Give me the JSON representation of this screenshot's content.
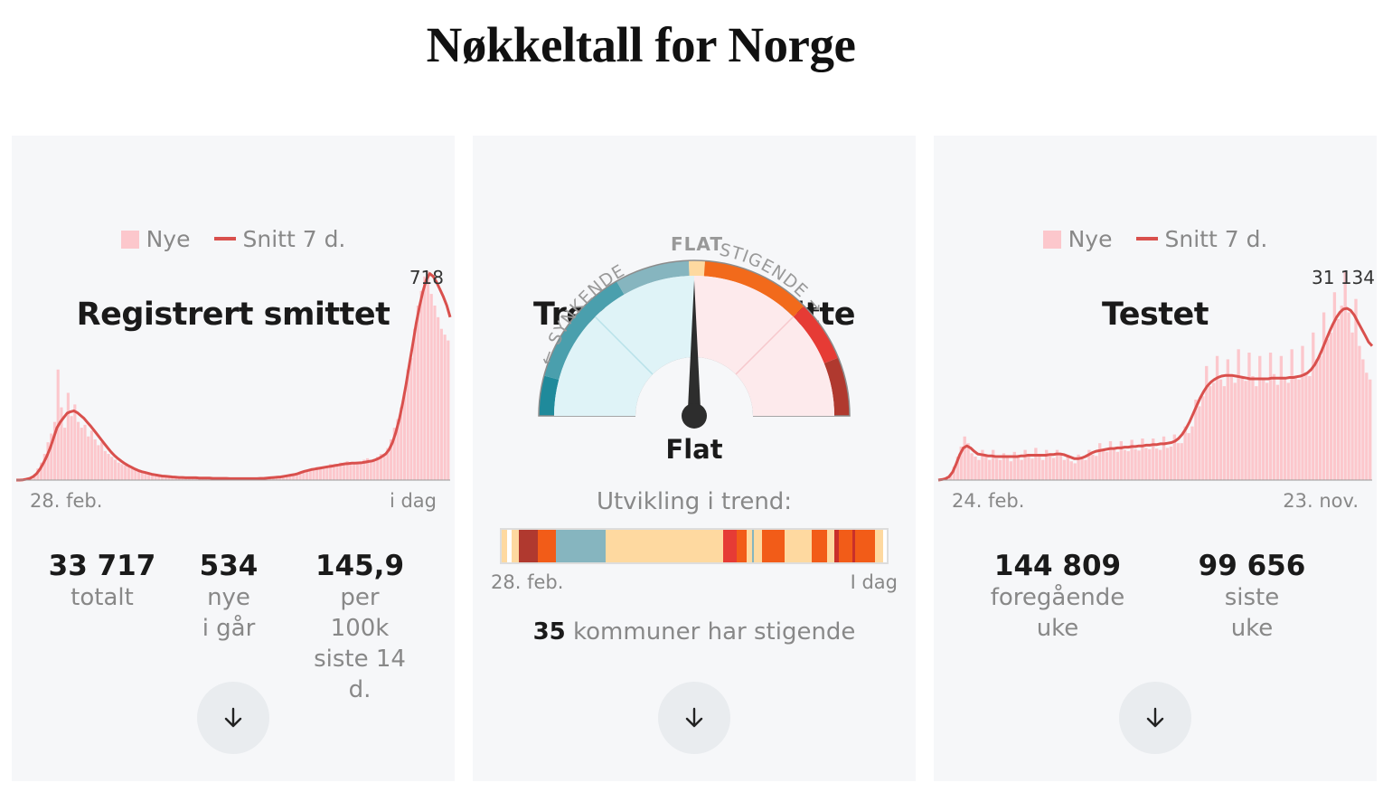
{
  "page_title": "Nøkkeltall for Norge",
  "colors": {
    "bar": "#fcc7cc",
    "line": "#d9504d",
    "card_bg": "#f6f7f9"
  },
  "cards": {
    "smittet": {
      "title": "Registrert smittet",
      "legend_bars": "Nye",
      "legend_line": "Snitt 7 d.",
      "x_start": "28. feb.",
      "x_end": "i dag",
      "peak_label": "718",
      "stats": [
        {
          "value": "33 717",
          "label": "totalt"
        },
        {
          "value": "534",
          "label": "nye\ni går"
        },
        {
          "value": "145,9",
          "label": "per 100k\nsiste 14 d."
        }
      ]
    },
    "trend": {
      "title": "Trend i reg. smitte",
      "gauge_left": "← SYNKENDE",
      "gauge_top": "FLAT",
      "gauge_right": "STIGENDE →",
      "gauge_value": "Flat",
      "subtitle": "Utvikling i trend:",
      "x_start": "28. feb.",
      "x_end": "I dag",
      "kommuner_count": "35",
      "kommuner_text": " kommuner har stigende"
    },
    "testet": {
      "title": "Testet",
      "legend_bars": "Nye",
      "legend_line": "Snitt 7 d.",
      "x_start": "24. feb.",
      "x_end": "23. nov.",
      "peak_label": "31 134",
      "stats": [
        {
          "value": "144 809",
          "label": "foregående\nuke"
        },
        {
          "value": "99 656",
          "label": "siste\nuke"
        }
      ]
    }
  },
  "chart_data": [
    {
      "type": "bar",
      "name": "Registrert smittet",
      "x_start": "28. feb.",
      "x_end": "i dag",
      "peak_value": 718,
      "ylim": [
        0,
        718
      ],
      "series": [
        {
          "name": "Nye",
          "kind": "bar",
          "values": [
            0,
            0,
            2,
            5,
            10,
            20,
            40,
            60,
            90,
            130,
            160,
            200,
            380,
            250,
            180,
            300,
            220,
            260,
            200,
            180,
            190,
            150,
            170,
            140,
            120,
            130,
            100,
            90,
            80,
            70,
            60,
            55,
            50,
            45,
            40,
            35,
            30,
            28,
            25,
            22,
            20,
            18,
            15,
            14,
            12,
            11,
            10,
            10,
            9,
            8,
            8,
            8,
            7,
            7,
            8,
            6,
            6,
            7,
            6,
            6,
            5,
            5,
            6,
            5,
            5,
            5,
            4,
            5,
            5,
            6,
            5,
            5,
            6,
            7,
            8,
            9,
            10,
            10,
            12,
            14,
            15,
            16,
            18,
            20,
            25,
            30,
            28,
            35,
            40,
            45,
            38,
            42,
            50,
            55,
            48,
            52,
            60,
            58,
            65,
            55,
            60,
            62,
            58,
            70,
            75,
            68,
            72,
            80,
            90,
            85,
            110,
            140,
            180,
            210,
            250,
            300,
            380,
            420,
            520,
            600,
            650,
            700,
            718,
            640,
            600,
            560,
            520,
            500,
            480
          ]
        },
        {
          "name": "Snitt 7 d.",
          "kind": "line",
          "values": [
            0,
            0,
            1,
            3,
            6,
            12,
            22,
            38,
            58,
            82,
            110,
            145,
            180,
            200,
            215,
            230,
            235,
            238,
            232,
            222,
            212,
            198,
            185,
            170,
            155,
            140,
            125,
            110,
            96,
            84,
            74,
            65,
            57,
            50,
            44,
            38,
            33,
            29,
            26,
            23,
            20,
            18,
            16,
            14,
            13,
            12,
            11,
            10,
            9,
            9,
            8,
            8,
            8,
            8,
            7,
            7,
            7,
            7,
            6,
            6,
            6,
            6,
            6,
            5,
            5,
            5,
            5,
            5,
            5,
            5,
            5,
            5,
            6,
            6,
            7,
            8,
            9,
            10,
            11,
            13,
            15,
            17,
            19,
            22,
            26,
            30,
            33,
            36,
            38,
            40,
            42,
            44,
            46,
            48,
            50,
            52,
            54,
            56,
            57,
            58,
            58,
            59,
            60,
            62,
            64,
            66,
            70,
            75,
            82,
            90,
            105,
            130,
            165,
            210,
            265,
            330,
            400,
            470,
            540,
            600,
            650,
            690,
            710,
            700,
            680,
            655,
            630,
            600,
            560
          ]
        }
      ]
    },
    {
      "type": "gauge",
      "name": "Trend i reg. smitte",
      "categories": [
        "SYNKENDE",
        "FLAT",
        "STIGENDE"
      ],
      "value": "Flat",
      "needle": 0
    },
    {
      "type": "heatmap",
      "name": "Utvikling i trend",
      "x_start": "28. feb.",
      "x_end": "I dag",
      "segments": [
        {
          "state": "flat",
          "color": "#fed9a0",
          "share": 0.015
        },
        {
          "state": "none",
          "color": "#ffffff",
          "share": 0.01
        },
        {
          "state": "flat",
          "color": "#fed9a0",
          "share": 0.02
        },
        {
          "state": "strong-rising",
          "color": "#b0392f",
          "share": 0.05
        },
        {
          "state": "rising",
          "color": "#f25c18",
          "share": 0.045
        },
        {
          "state": "falling",
          "color": "#86b5bf",
          "share": 0.13
        },
        {
          "state": "flat",
          "color": "#fed9a0",
          "share": 0.305
        },
        {
          "state": "rising-red",
          "color": "#e63b35",
          "share": 0.035
        },
        {
          "state": "rising",
          "color": "#f25c18",
          "share": 0.025
        },
        {
          "state": "flat",
          "color": "#fed9a0",
          "share": 0.015
        },
        {
          "state": "falling",
          "color": "#86b5bf",
          "share": 0.006
        },
        {
          "state": "flat",
          "color": "#fed9a0",
          "share": 0.019
        },
        {
          "state": "rising",
          "color": "#f25c18",
          "share": 0.06
        },
        {
          "state": "flat",
          "color": "#fed9a0",
          "share": 0.07
        },
        {
          "state": "rising",
          "color": "#f25c18",
          "share": 0.04
        },
        {
          "state": "flat",
          "color": "#fed9a0",
          "share": 0.02
        },
        {
          "state": "strong-rising",
          "color": "#c9302a",
          "share": 0.01
        },
        {
          "state": "rising",
          "color": "#f25c18",
          "share": 0.035
        },
        {
          "state": "strong-rising",
          "color": "#c9302a",
          "share": 0.008
        },
        {
          "state": "rising",
          "color": "#f25c18",
          "share": 0.052
        },
        {
          "state": "flat",
          "color": "#fed9a0",
          "share": 0.02
        }
      ]
    },
    {
      "type": "bar",
      "name": "Testet",
      "x_start": "24. feb.",
      "x_end": "23. nov.",
      "peak_value": 31134,
      "ylim": [
        0,
        31134
      ],
      "series": [
        {
          "name": "Nye",
          "kind": "bar",
          "values": [
            0,
            100,
            300,
            800,
            2000,
            3500,
            5000,
            6500,
            5500,
            4000,
            3500,
            3000,
            4500,
            3500,
            3000,
            4500,
            3200,
            3000,
            4000,
            3500,
            2800,
            4200,
            3500,
            3000,
            4500,
            3800,
            3200,
            4800,
            3500,
            3000,
            4500,
            3600,
            3300,
            4500,
            3800,
            3000,
            3500,
            2800,
            2500,
            3800,
            3200,
            3000,
            4500,
            3800,
            3600,
            5500,
            4500,
            4200,
            5800,
            4500,
            4200,
            5800,
            4500,
            4300,
            6000,
            4600,
            4400,
            6200,
            4800,
            4600,
            6200,
            4700,
            4500,
            6500,
            4800,
            5000,
            6800,
            5500,
            5500,
            8000,
            7000,
            8000,
            12000,
            11000,
            12500,
            17000,
            14000,
            14500,
            18500,
            15000,
            14000,
            18000,
            15500,
            14500,
            19500,
            15500,
            14800,
            19000,
            15500,
            14000,
            18500,
            15000,
            14500,
            19000,
            15800,
            14200,
            18500,
            15000,
            14500,
            19500,
            15500,
            15000,
            20000,
            16000,
            15500,
            22000,
            18000,
            18500,
            25000,
            21000,
            22000,
            28000,
            24000,
            26000,
            31134,
            25000,
            22000,
            27000,
            20000,
            18000,
            16000,
            15000
          ]
        },
        {
          "name": "Snitt 7 d.",
          "kind": "line",
          "values": [
            0,
            80,
            200,
            500,
            1200,
            2400,
            3800,
            4800,
            5100,
            4800,
            4300,
            3900,
            3800,
            3700,
            3600,
            3600,
            3500,
            3500,
            3500,
            3500,
            3500,
            3500,
            3500,
            3600,
            3600,
            3700,
            3700,
            3700,
            3700,
            3700,
            3700,
            3800,
            3800,
            3900,
            3900,
            3800,
            3600,
            3400,
            3200,
            3200,
            3300,
            3500,
            3800,
            4100,
            4300,
            4400,
            4500,
            4600,
            4700,
            4700,
            4800,
            4800,
            4900,
            4900,
            5000,
            5000,
            5100,
            5100,
            5200,
            5200,
            5300,
            5300,
            5400,
            5400,
            5500,
            5600,
            5800,
            6200,
            6800,
            7600,
            8600,
            9800,
            11000,
            12200,
            13200,
            14000,
            14600,
            15000,
            15300,
            15500,
            15600,
            15600,
            15600,
            15500,
            15400,
            15300,
            15200,
            15100,
            15100,
            15100,
            15100,
            15100,
            15100,
            15200,
            15200,
            15200,
            15200,
            15200,
            15300,
            15300,
            15400,
            15500,
            15700,
            16000,
            16500,
            17200,
            18200,
            19400,
            20700,
            22000,
            23200,
            24200,
            25000,
            25500,
            25600,
            25300,
            24600,
            23600,
            22600,
            21600,
            20600,
            20000
          ]
        }
      ]
    }
  ]
}
